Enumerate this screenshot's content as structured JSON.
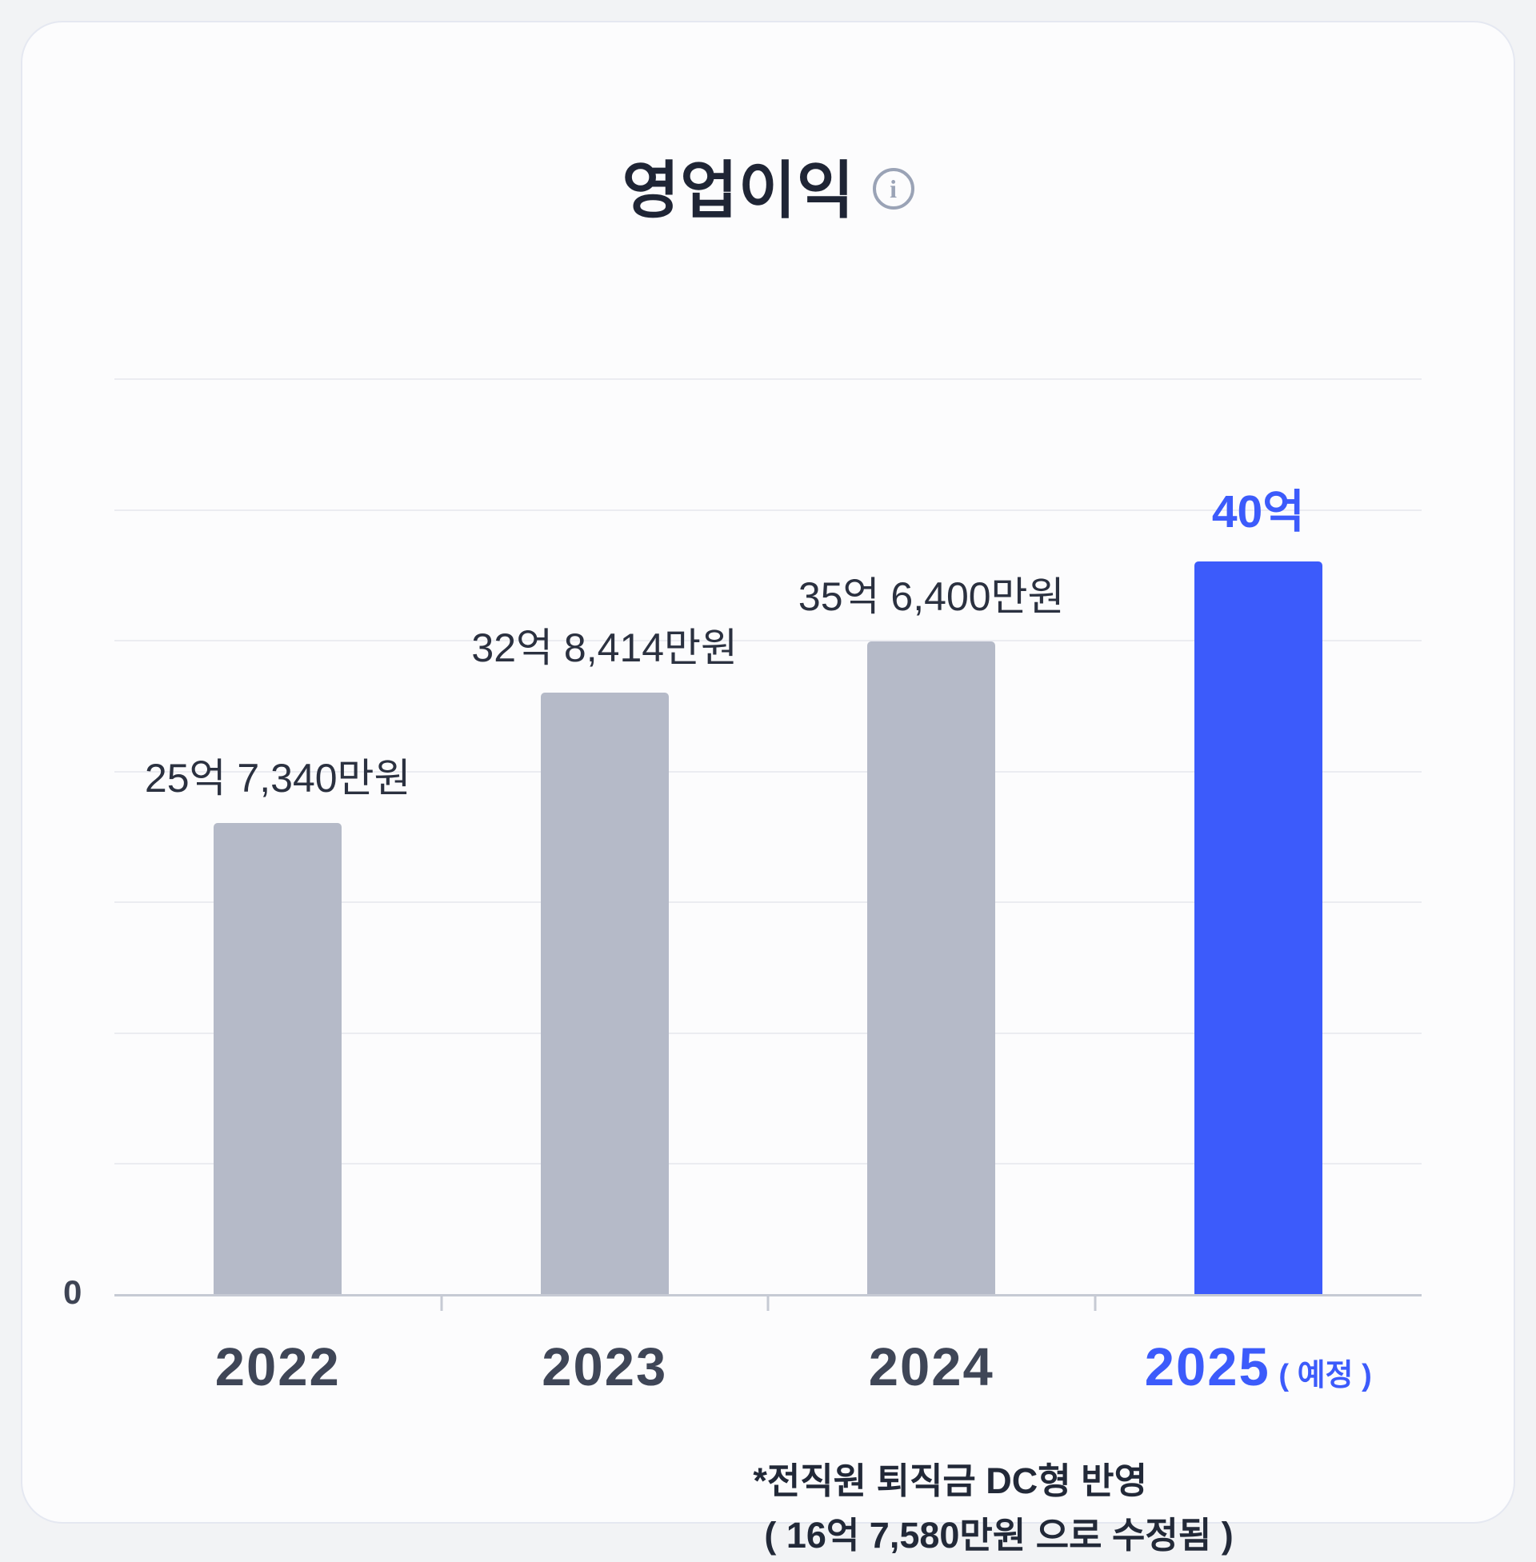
{
  "card": {
    "info_icon_glyph": "i"
  },
  "chart_data": {
    "type": "bar",
    "title": "영업이익",
    "categories": [
      "2022",
      "2023",
      "2024",
      "2025"
    ],
    "values": [
      25.734,
      32.8414,
      35.64,
      40
    ],
    "bar_labels": [
      "25억 7,340만원",
      "32억 8,414만원",
      "35억 6,400만원",
      "40억"
    ],
    "highlight_index": 3,
    "highlight_suffix": "( 예정 )",
    "xlabel": "",
    "ylabel": "",
    "ylim": [
      0,
      50
    ],
    "y_zero_label": "0",
    "gridline_count": 7,
    "legend": false,
    "colors": {
      "bar": "#b5bac8",
      "highlight_bar": "#3c5bfb",
      "bar_label": "#2b3140",
      "highlight_label": "#3c5bfb",
      "axis_label": "#3f4657",
      "highlight_axis_label": "#3c5bfb",
      "gridline": "#ebecf1",
      "axis_line": "#c6cad4"
    }
  },
  "footnote": {
    "line1": "*전직원 퇴직금 DC형 반영",
    "line2": "( 16억 7,580만원 으로 수정됨 )"
  }
}
